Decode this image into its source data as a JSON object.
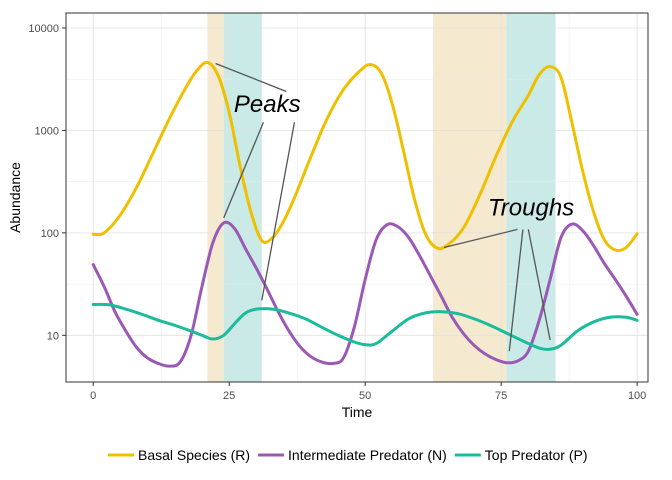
{
  "chart_data": {
    "type": "line",
    "xlabel": "Time",
    "ylabel": "Abundance",
    "xlim": [
      -5,
      102
    ],
    "ylim": [
      3.5,
      14000
    ],
    "yscale": "log10",
    "xticks": [
      0,
      25,
      50,
      75,
      100
    ],
    "xtick_labels": [
      "0",
      "25",
      "50",
      "75",
      "100"
    ],
    "yticks": [
      10,
      100,
      1000,
      10000
    ],
    "ytick_labels": [
      "10",
      "100",
      "1000",
      "10000"
    ],
    "grid": true,
    "legend_position": "bottom",
    "colors": {
      "Basal Species (R)": "#EFC000",
      "Intermediate Predator (N)": "#9B59B6",
      "Top Predator (P)": "#1ABC9C",
      "shade_peak": "#F3E5C8",
      "shade_trough": "#BFE6E3"
    },
    "bands": [
      {
        "x0": 21,
        "x1": 24,
        "type": "tan"
      },
      {
        "x0": 24,
        "x1": 31,
        "type": "teal"
      },
      {
        "x0": 62.5,
        "x1": 76,
        "type": "tan"
      },
      {
        "x0": 76,
        "x1": 85,
        "type": "teal"
      }
    ],
    "series": [
      {
        "name": "Basal Species (R)",
        "color": "#EFC000",
        "points": [
          [
            0,
            97
          ],
          [
            2,
            100
          ],
          [
            5,
            150
          ],
          [
            8,
            280
          ],
          [
            11,
            600
          ],
          [
            14,
            1300
          ],
          [
            17,
            2600
          ],
          [
            19,
            3800
          ],
          [
            21,
            4600
          ],
          [
            23,
            3400
          ],
          [
            25,
            1500
          ],
          [
            27,
            450
          ],
          [
            29,
            160
          ],
          [
            31,
            84
          ],
          [
            33,
            90
          ],
          [
            35,
            130
          ],
          [
            37,
            220
          ],
          [
            40,
            550
          ],
          [
            43,
            1300
          ],
          [
            46,
            2500
          ],
          [
            49,
            3800
          ],
          [
            51,
            4400
          ],
          [
            53,
            3600
          ],
          [
            55,
            1800
          ],
          [
            57,
            650
          ],
          [
            59,
            220
          ],
          [
            61,
            100
          ],
          [
            63,
            72
          ],
          [
            65,
            75
          ],
          [
            68,
            110
          ],
          [
            71,
            230
          ],
          [
            74,
            550
          ],
          [
            77,
            1200
          ],
          [
            80,
            2200
          ],
          [
            82,
            3500
          ],
          [
            84,
            4200
          ],
          [
            86,
            3300
          ],
          [
            88,
            1200
          ],
          [
            90,
            400
          ],
          [
            92,
            160
          ],
          [
            94,
            85
          ],
          [
            96,
            68
          ],
          [
            98,
            72
          ],
          [
            100,
            98
          ]
        ]
      },
      {
        "name": "Intermediate Predator (N)",
        "color": "#9B59B6",
        "points": [
          [
            0,
            49
          ],
          [
            2,
            30
          ],
          [
            4,
            17
          ],
          [
            6,
            11
          ],
          [
            8,
            7.6
          ],
          [
            10,
            6
          ],
          [
            12,
            5.3
          ],
          [
            14,
            5
          ],
          [
            16,
            5.5
          ],
          [
            18,
            10
          ],
          [
            20,
            30
          ],
          [
            22,
            80
          ],
          [
            24,
            125
          ],
          [
            26,
            110
          ],
          [
            28,
            70
          ],
          [
            30,
            45
          ],
          [
            32,
            28
          ],
          [
            34,
            17
          ],
          [
            36,
            11
          ],
          [
            38,
            7.8
          ],
          [
            40,
            6.2
          ],
          [
            42,
            5.5
          ],
          [
            44,
            5.3
          ],
          [
            46,
            6
          ],
          [
            48,
            12
          ],
          [
            50,
            35
          ],
          [
            52,
            85
          ],
          [
            54,
            120
          ],
          [
            56,
            115
          ],
          [
            58,
            90
          ],
          [
            60,
            60
          ],
          [
            62,
            38
          ],
          [
            64,
            24
          ],
          [
            66,
            15
          ],
          [
            68,
            10.5
          ],
          [
            70,
            8
          ],
          [
            72,
            6.6
          ],
          [
            74,
            5.8
          ],
          [
            76,
            5.4
          ],
          [
            78,
            5.6
          ],
          [
            80,
            7
          ],
          [
            82,
            14
          ],
          [
            84,
            35
          ],
          [
            86,
            90
          ],
          [
            88,
            122
          ],
          [
            90,
            105
          ],
          [
            92,
            75
          ],
          [
            94,
            50
          ],
          [
            96,
            35
          ],
          [
            98,
            24
          ],
          [
            100,
            16
          ]
        ]
      },
      {
        "name": "Top Predator (P)",
        "color": "#1ABC9C",
        "points": [
          [
            0,
            20
          ],
          [
            3,
            19.8
          ],
          [
            6,
            18
          ],
          [
            9,
            16
          ],
          [
            12,
            14
          ],
          [
            15,
            12.5
          ],
          [
            18,
            11
          ],
          [
            20,
            10
          ],
          [
            22,
            9.2
          ],
          [
            24,
            10
          ],
          [
            26,
            13
          ],
          [
            28,
            16.5
          ],
          [
            30,
            18
          ],
          [
            33,
            18
          ],
          [
            36,
            16.5
          ],
          [
            39,
            14.5
          ],
          [
            42,
            12
          ],
          [
            45,
            10
          ],
          [
            48,
            8.6
          ],
          [
            50,
            8.1
          ],
          [
            52,
            8.3
          ],
          [
            55,
            11
          ],
          [
            58,
            14.5
          ],
          [
            61,
            16.5
          ],
          [
            64,
            17
          ],
          [
            67,
            16.3
          ],
          [
            70,
            14.5
          ],
          [
            73,
            12.5
          ],
          [
            76,
            10.5
          ],
          [
            79,
            8.8
          ],
          [
            82,
            7.5
          ],
          [
            84,
            7.3
          ],
          [
            86,
            8
          ],
          [
            89,
            11
          ],
          [
            92,
            13.5
          ],
          [
            95,
            15
          ],
          [
            98,
            15
          ],
          [
            100,
            14
          ]
        ]
      }
    ],
    "annotations": [
      {
        "text": "Peaks",
        "x": 32,
        "y": 1750,
        "leaders": [
          [
            [
              22.5,
              4500
            ],
            [
              35.5,
              2400
            ]
          ],
          [
            [
              24,
              140
            ],
            [
              31.3,
              1200
            ]
          ],
          [
            [
              31,
              22
            ],
            [
              37,
              1200
            ]
          ]
        ]
      },
      {
        "text": "Troughs",
        "x": 80.5,
        "y": 170,
        "leaders": [
          [
            [
              64.5,
              72
            ],
            [
              78,
              108
            ]
          ],
          [
            [
              76.5,
              7
            ],
            [
              79,
              108
            ]
          ],
          [
            [
              84,
              9
            ],
            [
              80,
              108
            ]
          ]
        ]
      }
    ],
    "legend": [
      "Basal Species (R)",
      "Intermediate Predator (N)",
      "Top Predator (P)"
    ]
  }
}
